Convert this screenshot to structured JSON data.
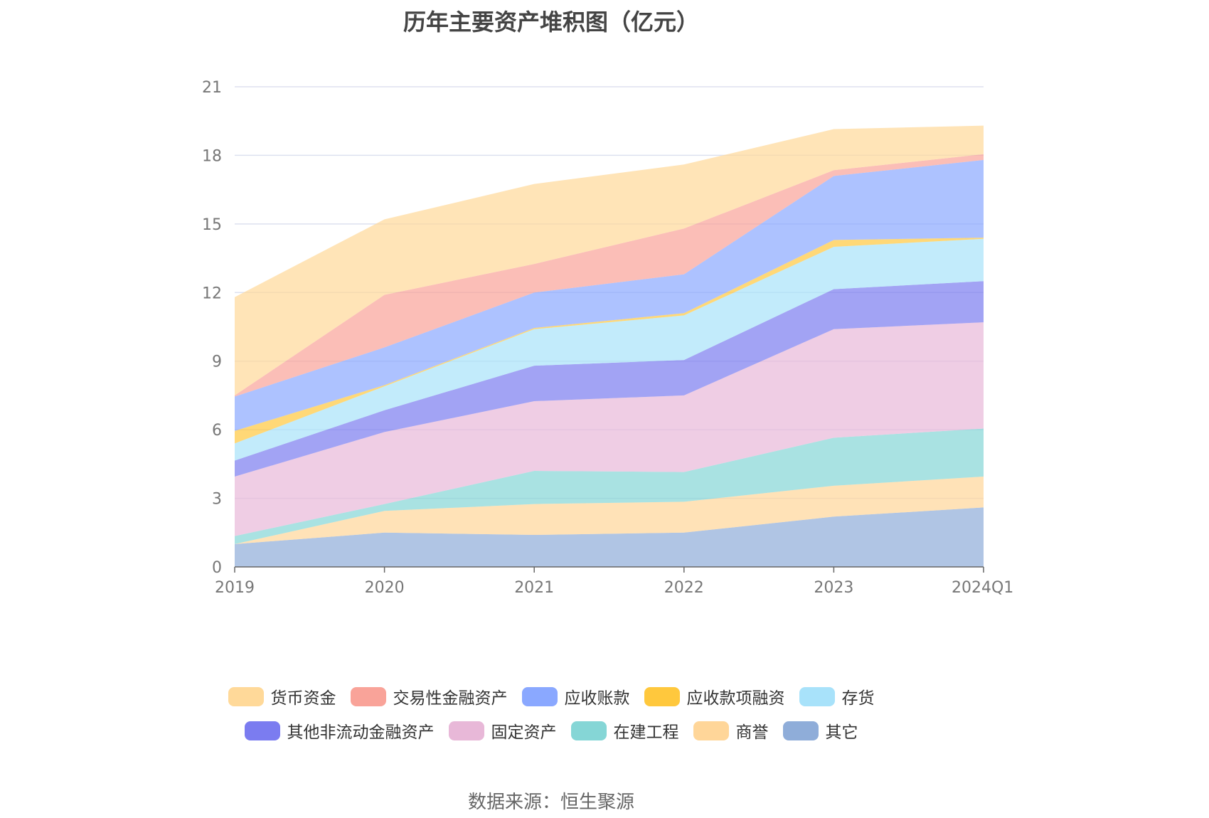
{
  "title": "历年主要资产堆积图（亿元）",
  "source": "数据来源：恒生聚源",
  "chart_data": {
    "type": "area",
    "stacked": true,
    "title": "历年主要资产堆积图（亿元）",
    "x": [
      "2019",
      "2020",
      "2021",
      "2022",
      "2023",
      "2024Q1"
    ],
    "y_ticks": [
      "0",
      "3",
      "6",
      "9",
      "12",
      "15",
      "18",
      "21"
    ],
    "ylim": [
      0,
      21
    ],
    "grid": true,
    "legend_position": "bottom",
    "series": [
      {
        "name": "其它",
        "color": "#8fadd9",
        "values": [
          1.0,
          1.5,
          1.4,
          1.5,
          2.2,
          2.6
        ]
      },
      {
        "name": "商誉",
        "color": "#ffd699",
        "values": [
          0.0,
          0.95,
          1.35,
          1.35,
          1.35,
          1.35
        ]
      },
      {
        "name": "在建工程",
        "color": "#85d6d6",
        "values": [
          0.35,
          0.3,
          1.45,
          1.3,
          2.1,
          2.1
        ]
      },
      {
        "name": "固定资产",
        "color": "#e8b8d8",
        "values": [
          2.6,
          3.15,
          3.05,
          3.35,
          4.75,
          4.65
        ]
      },
      {
        "name": "其他非流动金融资产",
        "color": "#7b7cf0",
        "values": [
          0.7,
          0.95,
          1.55,
          1.55,
          1.75,
          1.8
        ]
      },
      {
        "name": "存货",
        "color": "#a8e2fa",
        "values": [
          0.75,
          1.05,
          1.6,
          1.95,
          1.85,
          1.85
        ]
      },
      {
        "name": "应收款项融资",
        "color": "#ffc83d",
        "values": [
          0.55,
          0.05,
          0.05,
          0.1,
          0.3,
          0.05
        ]
      },
      {
        "name": "应收账款",
        "color": "#8aa8ff",
        "values": [
          1.5,
          1.65,
          1.55,
          1.7,
          2.8,
          3.4
        ]
      },
      {
        "name": "交易性金融资产",
        "color": "#f9a399",
        "values": [
          0.05,
          2.3,
          1.25,
          2.0,
          0.25,
          0.25
        ]
      },
      {
        "name": "货币资金",
        "color": "#ffd999",
        "values": [
          4.3,
          3.3,
          3.5,
          2.8,
          1.8,
          1.25
        ]
      }
    ]
  },
  "legend": {
    "rows": [
      [
        {
          "label": "货币资金",
          "color": "#ffd999"
        },
        {
          "label": "交易性金融资产",
          "color": "#f9a399"
        },
        {
          "label": "应收账款",
          "color": "#8aa8ff"
        },
        {
          "label": "应收款项融资",
          "color": "#ffc83d"
        },
        {
          "label": "存货",
          "color": "#a8e2fa"
        }
      ],
      [
        {
          "label": "其他非流动金融资产",
          "color": "#7b7cf0"
        },
        {
          "label": "固定资产",
          "color": "#e8b8d8"
        },
        {
          "label": "在建工程",
          "color": "#85d6d6"
        },
        {
          "label": "商誉",
          "color": "#ffd699"
        },
        {
          "label": "其它",
          "color": "#8fadd9"
        }
      ]
    ]
  }
}
